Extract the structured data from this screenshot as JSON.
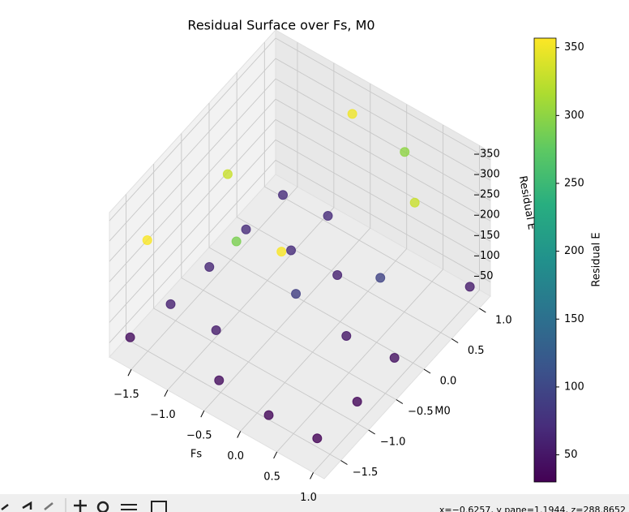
{
  "chart_data": {
    "type": "scatter3d",
    "title": "Residual Surface over Fs, M0",
    "x_label": "Fs",
    "y_label": "M0",
    "z_label": "Residual E",
    "colorbar_label": "Residual E",
    "colormap": "viridis",
    "x": [
      -1.69,
      -0.53,
      0.19,
      0.81,
      0.88,
      0.89,
      0.29,
      1.02,
      -0.92,
      -1.53,
      -1.47,
      -0.26,
      -0.38,
      0.27,
      -1.43,
      -0.85,
      -1.38,
      -0.8,
      -1.28,
      -1.18,
      -0.68,
      0.03,
      -0.48,
      0.14,
      0.75
    ],
    "y": [
      -1.57,
      -1.49,
      -1.54,
      -1.48,
      -0.85,
      -0.19,
      -0.27,
      1.0,
      -1.03,
      -1.05,
      -0.43,
      0.29,
      -0.3,
      0.37,
      0.18,
      0.23,
      0.78,
      0.83,
      -1.8,
      -0.48,
      -0.98,
      -1.1,
      0.85,
      0.98,
      0.36
    ],
    "z": [
      40,
      40,
      35,
      32,
      35,
      45,
      50,
      55,
      55,
      60,
      65,
      60,
      90,
      95,
      70,
      70,
      70,
      70,
      355,
      330,
      290,
      355,
      350,
      300,
      330
    ],
    "xlim": [
      -1.8,
      1.15
    ],
    "ylim": [
      -1.8,
      1.2
    ],
    "zlim": [
      15,
      370
    ],
    "xticks": [
      {
        "value": -1.5,
        "label": "−1.5"
      },
      {
        "value": -1.0,
        "label": "−1.0"
      },
      {
        "value": -0.5,
        "label": "−0.5"
      },
      {
        "value": 0,
        "label": "0.0"
      },
      0.5,
      {
        "value": 1,
        "label": "1.0"
      }
    ],
    "yticks": [
      {
        "value": -1.5,
        "label": "−1.5"
      },
      {
        "value": -1.0,
        "label": "−1.0"
      },
      {
        "value": -0.5,
        "label": "−0.5"
      },
      {
        "value": 0,
        "label": "0.0"
      },
      0.5,
      {
        "value": 1,
        "label": "1.0"
      }
    ],
    "zticks": [
      50,
      100,
      150,
      200,
      250,
      300,
      350
    ],
    "clim": [
      30,
      357
    ],
    "cticks": [
      50,
      100,
      150,
      200,
      250,
      300,
      350
    ],
    "grid": true
  },
  "status_bar": "x=−0.6257, y pane=1.1944, z=288.8652"
}
